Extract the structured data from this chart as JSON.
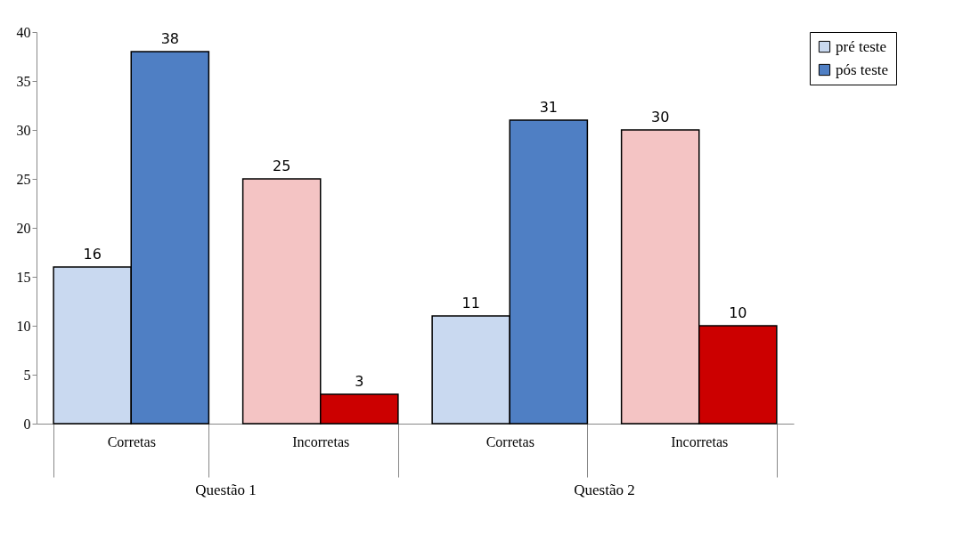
{
  "chart_data": {
    "type": "bar",
    "categories": [
      "Corretas",
      "Incorretas",
      "Corretas",
      "Incorretas"
    ],
    "series": [
      {
        "name": "pré teste",
        "color": "#c9d9f0",
        "colors": [
          "#c9d9f0",
          "#f4c4c4",
          "#c9d9f0",
          "#f4c4c4"
        ],
        "values": [
          16,
          25,
          11,
          30
        ]
      },
      {
        "name": "pós teste",
        "color": "#4f7fc4",
        "colors": [
          "#4f7fc4",
          "#cc0000",
          "#4f7fc4",
          "#cc0000"
        ],
        "values": [
          38,
          3,
          31,
          10
        ]
      }
    ],
    "annotations": [
      "Questão 1",
      "Questão 2"
    ],
    "ylim": [
      0,
      40
    ],
    "yticks": [
      0,
      5,
      10,
      15,
      20,
      25,
      30,
      35,
      40
    ],
    "data_labels": true,
    "grid": false,
    "legend": "right"
  }
}
